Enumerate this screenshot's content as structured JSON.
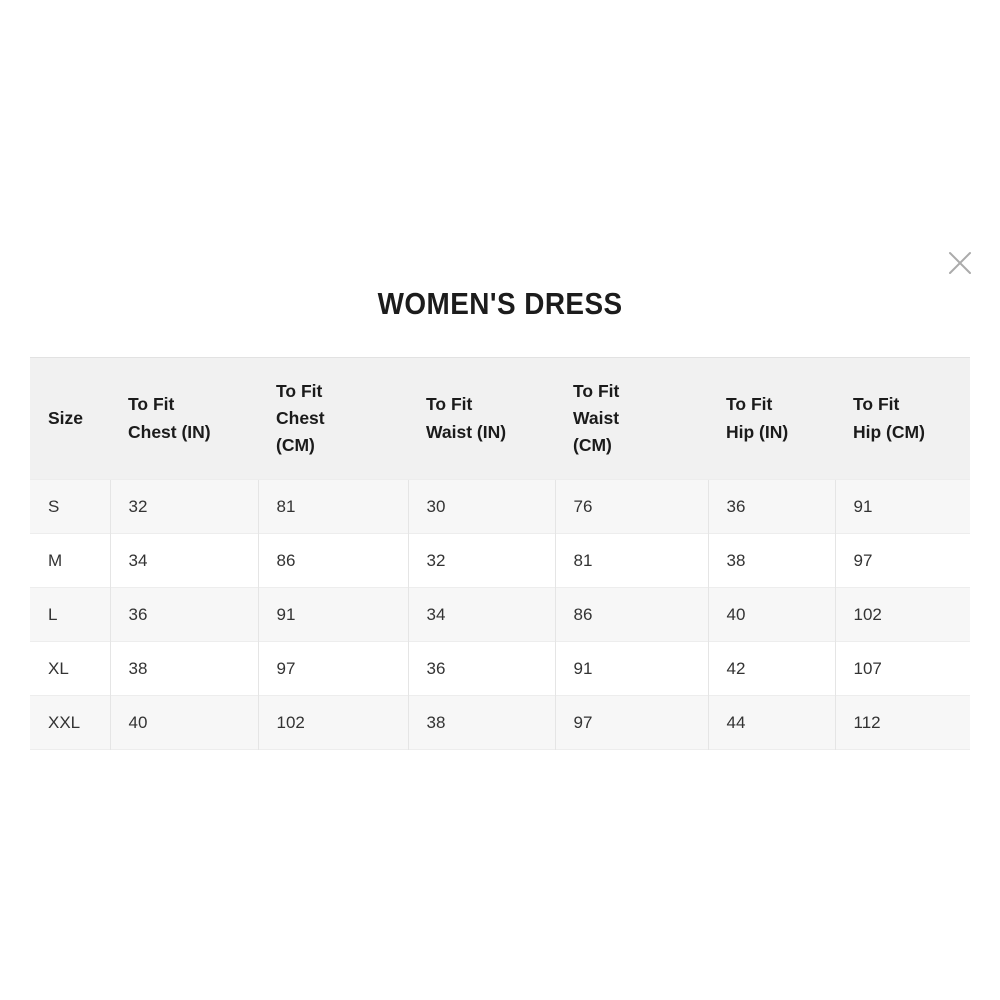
{
  "dialog": {
    "title": "WOMEN'S DRESS"
  },
  "icons": {
    "close": "x-mark"
  },
  "size_chart": {
    "columns": [
      "Size",
      "To Fit\nChest (IN)",
      "To Fit\nChest\n(CM)",
      "To Fit\nWaist (IN)",
      "To Fit\nWaist\n(CM)",
      "To Fit\nHip (IN)",
      "To Fit\nHip (CM)"
    ],
    "rows": [
      [
        "S",
        "32",
        "81",
        "30",
        "76",
        "36",
        "91"
      ],
      [
        "M",
        "34",
        "86",
        "32",
        "81",
        "38",
        "97"
      ],
      [
        "L",
        "36",
        "91",
        "34",
        "86",
        "40",
        "102"
      ],
      [
        "XL",
        "38",
        "97",
        "36",
        "91",
        "42",
        "107"
      ],
      [
        "XXL",
        "40",
        "102",
        "38",
        "97",
        "44",
        "112"
      ]
    ]
  },
  "colors": {
    "page_bg": "#ffffff",
    "header_bg": "#f1f1f1",
    "stripe_bg": "#f7f7f7",
    "divider": "#e5e5e5",
    "header_text": "#1b1b1b",
    "cell_text": "#333333",
    "title_text": "#1c1c1c",
    "close_icon": "#ababab"
  }
}
